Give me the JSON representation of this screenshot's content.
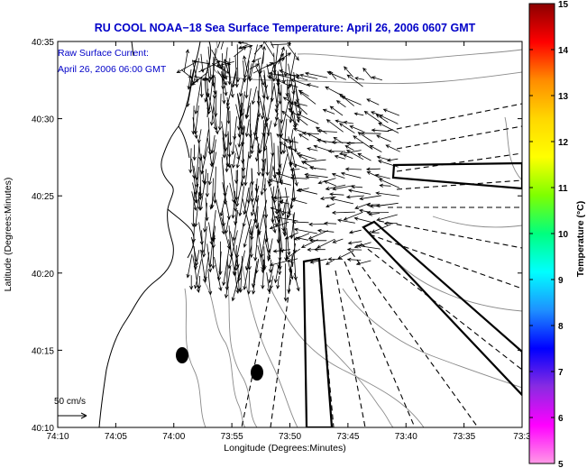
{
  "title": "RU COOL  NOAA−18  Sea Surface Temperature:  April 26, 2006 0607 GMT",
  "annotation": {
    "line1": "Raw Surface Current:",
    "line2": "April 26, 2006 06:00 GMT"
  },
  "scale_label": "50 cm/s",
  "chart_data": {
    "type": "map",
    "xlabel": "Longitude (Degrees:Minutes)",
    "ylabel": "Latitude (Degrees:Minutes)",
    "x_ticks": [
      "74:10",
      "74:05",
      "74:00",
      "73:55",
      "73:50",
      "73:45",
      "73:40",
      "73:35",
      "73:3"
    ],
    "y_ticks": [
      "40:35",
      "40:30",
      "40:25",
      "40:20",
      "40:15",
      "40:10"
    ],
    "colorbar": {
      "label": "Temperature (°C)",
      "range": [
        5,
        15
      ],
      "ticks": [
        "15",
        "14",
        "13",
        "12",
        "11",
        "10",
        "9",
        "8",
        "7",
        "6",
        "5"
      ],
      "colors": [
        "#8b0000",
        "#ff0000",
        "#ff8c00",
        "#ffd700",
        "#ffff00",
        "#7fff00",
        "#00ff7f",
        "#00ffff",
        "#1e90ff",
        "#0000ff",
        "#8a2be2",
        "#ff00ff",
        "#ff9ae6"
      ]
    },
    "grid": false
  },
  "colors": {
    "title": "#0000c8",
    "coastline": "#000000",
    "bathymetry": "#888888",
    "vectors": "#000000"
  }
}
